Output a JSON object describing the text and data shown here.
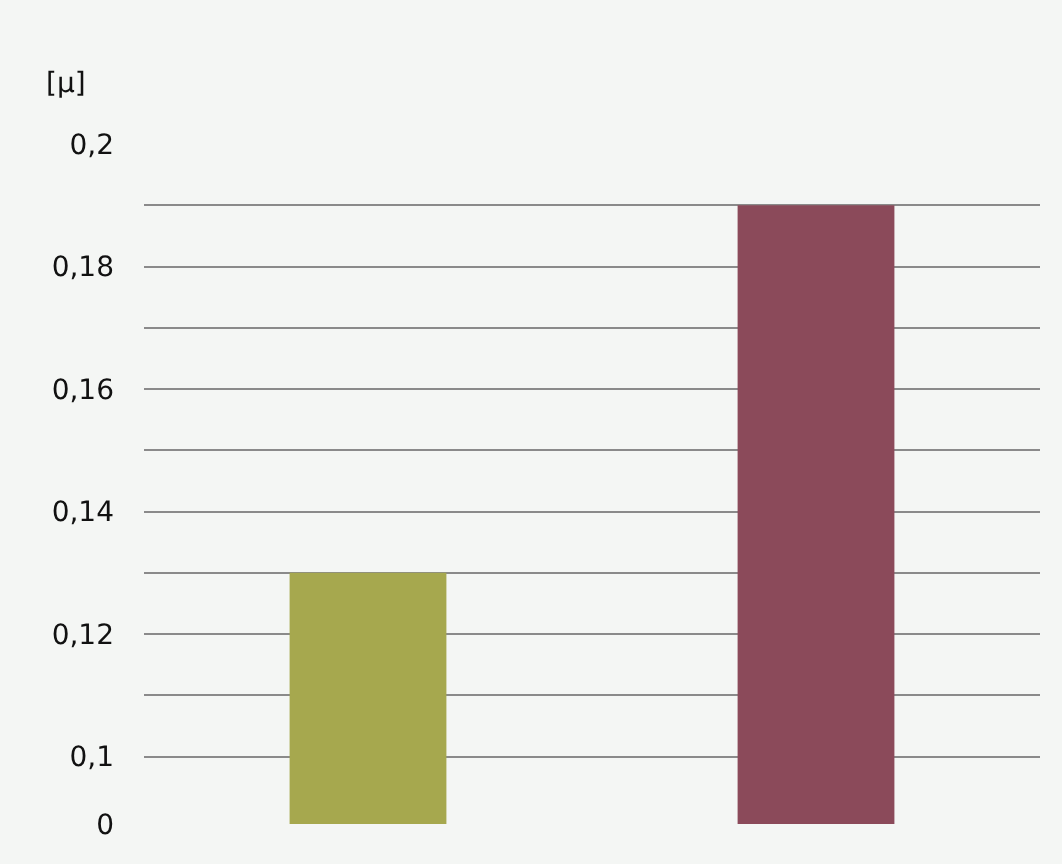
{
  "chart_data": {
    "type": "bar",
    "ylabel": "[μ]",
    "categories": [
      null,
      null
    ],
    "values": [
      0.13,
      0.19
    ],
    "colors": [
      "#a6a84e",
      "#8b4a5a"
    ],
    "ylim": [
      0.089,
      0.2
    ],
    "yticks": [
      {
        "value": 0.089,
        "label": "0"
      },
      {
        "value": 0.1,
        "label": "0,1"
      },
      {
        "value": 0.11,
        "label": null
      },
      {
        "value": 0.12,
        "label": "0,12"
      },
      {
        "value": 0.13,
        "label": null
      },
      {
        "value": 0.14,
        "label": "0,14"
      },
      {
        "value": 0.15,
        "label": null
      },
      {
        "value": 0.16,
        "label": "0,16"
      },
      {
        "value": 0.17,
        "label": null
      },
      {
        "value": 0.18,
        "label": "0,18"
      },
      {
        "value": 0.19,
        "label": null
      },
      {
        "value": 0.2,
        "label": "0,2"
      }
    ],
    "grid": "y"
  }
}
